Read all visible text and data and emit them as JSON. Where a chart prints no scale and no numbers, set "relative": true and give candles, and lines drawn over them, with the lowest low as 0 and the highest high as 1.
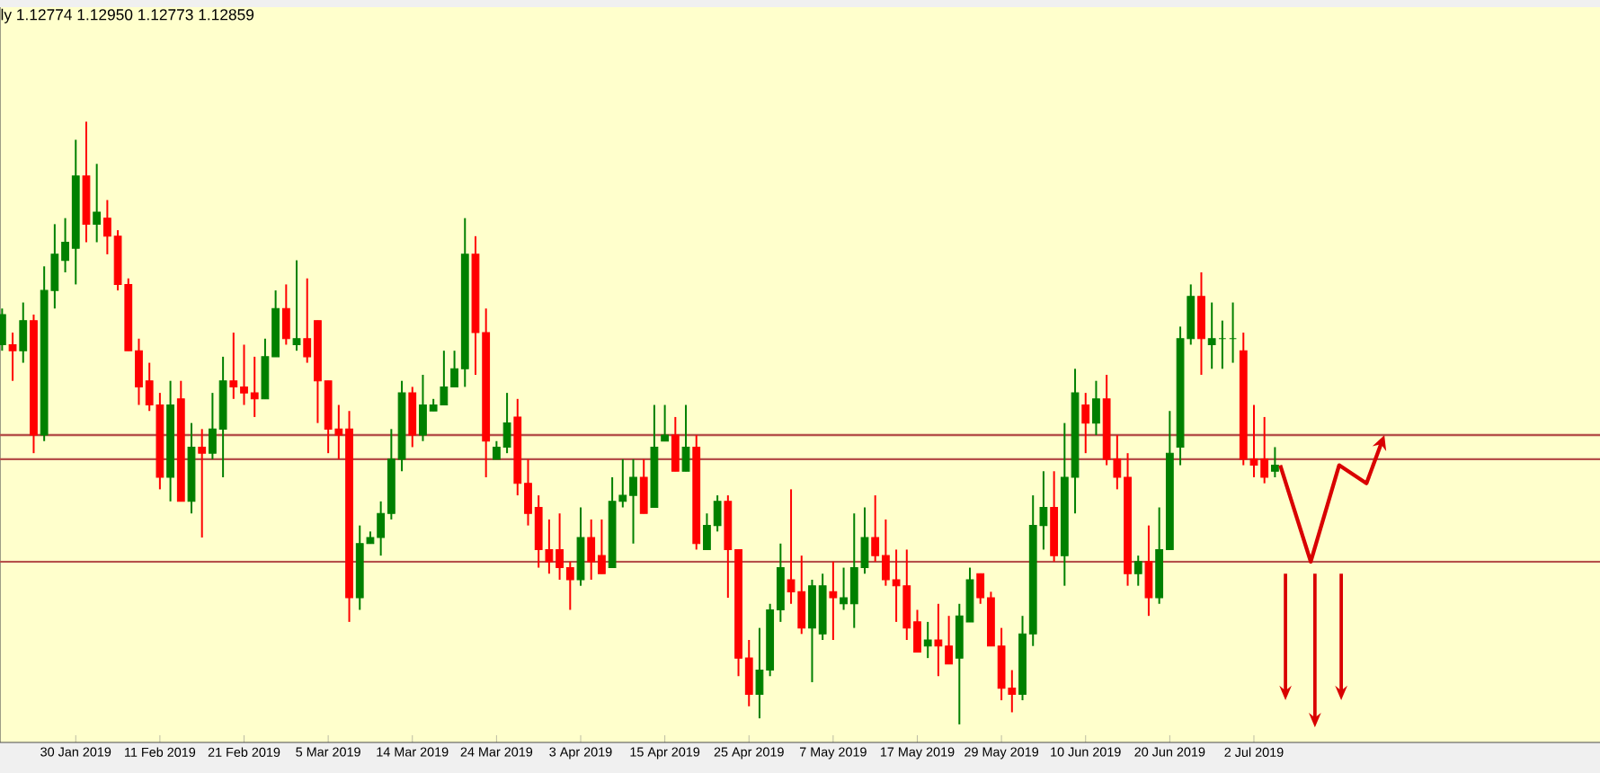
{
  "chart_data": {
    "type": "candlestick",
    "title": "ly 1.12774 1.12950 1.12773 1.12859",
    "relative": true,
    "categories": [
      null,
      null,
      null,
      null,
      null,
      null,
      null,
      "30 Jan 2019",
      null,
      null,
      null,
      null,
      null,
      null,
      null,
      "11 Feb 2019",
      null,
      null,
      null,
      null,
      null,
      null,
      null,
      "21 Feb 2019",
      null,
      null,
      null,
      null,
      null,
      null,
      null,
      "5 Mar 2019",
      null,
      null,
      null,
      null,
      null,
      null,
      null,
      "14 Mar 2019",
      null,
      null,
      null,
      null,
      null,
      null,
      null,
      "24 Mar 2019",
      null,
      null,
      null,
      null,
      null,
      null,
      null,
      "3 Apr 2019",
      null,
      null,
      null,
      null,
      null,
      null,
      null,
      "15 Apr 2019",
      null,
      null,
      null,
      null,
      null,
      null,
      null,
      "25 Apr 2019",
      null,
      null,
      null,
      null,
      null,
      null,
      null,
      "7 May 2019",
      null,
      null,
      null,
      null,
      null,
      null,
      null,
      "17 May 2019",
      null,
      null,
      null,
      null,
      null,
      null,
      null,
      "29 May 2019",
      null,
      null,
      null,
      null,
      null,
      null,
      null,
      "10 Jun 2019",
      null,
      null,
      null,
      null,
      null,
      null,
      null,
      "20 Jun 2019",
      null,
      null,
      null,
      null,
      null,
      null,
      null,
      "2 Jul 2019",
      null,
      null
    ],
    "ohlc": [
      [
        0.63,
        0.69,
        0.62,
        0.68
      ],
      [
        0.63,
        0.65,
        0.57,
        0.62
      ],
      [
        0.62,
        0.7,
        0.6,
        0.67
      ],
      [
        0.67,
        0.68,
        0.45,
        0.48
      ],
      [
        0.48,
        0.76,
        0.47,
        0.72
      ],
      [
        0.72,
        0.83,
        0.69,
        0.78
      ],
      [
        0.77,
        0.84,
        0.75,
        0.8
      ],
      [
        0.79,
        0.97,
        0.73,
        0.91
      ],
      [
        0.91,
        1.0,
        0.8,
        0.83
      ],
      [
        0.83,
        0.93,
        0.8,
        0.85
      ],
      [
        0.84,
        0.87,
        0.78,
        0.81
      ],
      [
        0.81,
        0.82,
        0.72,
        0.73
      ],
      [
        0.73,
        0.74,
        0.62,
        0.62
      ],
      [
        0.62,
        0.64,
        0.53,
        0.56
      ],
      [
        0.57,
        0.6,
        0.52,
        0.53
      ],
      [
        0.53,
        0.55,
        0.39,
        0.41
      ],
      [
        0.41,
        0.57,
        0.37,
        0.53
      ],
      [
        0.54,
        0.57,
        0.37,
        0.37
      ],
      [
        0.37,
        0.5,
        0.35,
        0.46
      ],
      [
        0.46,
        0.49,
        0.31,
        0.45
      ],
      [
        0.45,
        0.55,
        0.44,
        0.49
      ],
      [
        0.49,
        0.61,
        0.41,
        0.57
      ],
      [
        0.57,
        0.65,
        0.54,
        0.56
      ],
      [
        0.56,
        0.63,
        0.53,
        0.55
      ],
      [
        0.55,
        0.61,
        0.51,
        0.54
      ],
      [
        0.54,
        0.64,
        0.54,
        0.61
      ],
      [
        0.61,
        0.72,
        0.61,
        0.69
      ],
      [
        0.69,
        0.73,
        0.63,
        0.64
      ],
      [
        0.63,
        0.77,
        0.62,
        0.64
      ],
      [
        0.64,
        0.74,
        0.6,
        0.61
      ],
      [
        0.67,
        0.67,
        0.5,
        0.57
      ],
      [
        0.57,
        0.57,
        0.45,
        0.49
      ],
      [
        0.49,
        0.53,
        0.44,
        0.48
      ],
      [
        0.49,
        0.52,
        0.17,
        0.21
      ],
      [
        0.21,
        0.33,
        0.19,
        0.3
      ],
      [
        0.3,
        0.32,
        0.3,
        0.31
      ],
      [
        0.31,
        0.37,
        0.28,
        0.35
      ],
      [
        0.35,
        0.49,
        0.34,
        0.44
      ],
      [
        0.44,
        0.57,
        0.42,
        0.55
      ],
      [
        0.55,
        0.56,
        0.46,
        0.48
      ],
      [
        0.48,
        0.58,
        0.47,
        0.53
      ],
      [
        0.52,
        0.54,
        0.52,
        0.53
      ],
      [
        0.53,
        0.62,
        0.53,
        0.56
      ],
      [
        0.56,
        0.62,
        0.56,
        0.59
      ],
      [
        0.59,
        0.84,
        0.56,
        0.78
      ],
      [
        0.78,
        0.81,
        0.58,
        0.65
      ],
      [
        0.65,
        0.69,
        0.41,
        0.47
      ],
      [
        0.44,
        0.47,
        0.44,
        0.46
      ],
      [
        0.46,
        0.55,
        0.45,
        0.5
      ],
      [
        0.51,
        0.54,
        0.38,
        0.4
      ],
      [
        0.4,
        0.44,
        0.33,
        0.35
      ],
      [
        0.36,
        0.38,
        0.26,
        0.29
      ],
      [
        0.29,
        0.34,
        0.25,
        0.27
      ],
      [
        0.29,
        0.35,
        0.24,
        0.26
      ],
      [
        0.26,
        0.27,
        0.19,
        0.24
      ],
      [
        0.24,
        0.36,
        0.23,
        0.31
      ],
      [
        0.31,
        0.34,
        0.24,
        0.27
      ],
      [
        0.28,
        0.34,
        0.25,
        0.25
      ],
      [
        0.26,
        0.41,
        0.26,
        0.37
      ],
      [
        0.37,
        0.44,
        0.36,
        0.38
      ],
      [
        0.38,
        0.44,
        0.3,
        0.41
      ],
      [
        0.41,
        0.44,
        0.35,
        0.35
      ],
      [
        0.36,
        0.53,
        0.36,
        0.46
      ],
      [
        0.47,
        0.53,
        0.47,
        0.48
      ],
      [
        0.48,
        0.51,
        0.42,
        0.42
      ],
      [
        0.42,
        0.53,
        0.42,
        0.46
      ],
      [
        0.46,
        0.48,
        0.29,
        0.3
      ],
      [
        0.29,
        0.35,
        0.29,
        0.33
      ],
      [
        0.33,
        0.38,
        0.32,
        0.37
      ],
      [
        0.37,
        0.38,
        0.21,
        0.29
      ],
      [
        0.29,
        0.29,
        0.08,
        0.11
      ],
      [
        0.11,
        0.14,
        0.03,
        0.05
      ],
      [
        0.05,
        0.16,
        0.01,
        0.09
      ],
      [
        0.09,
        0.2,
        0.08,
        0.19
      ],
      [
        0.19,
        0.3,
        0.17,
        0.26
      ],
      [
        0.24,
        0.39,
        0.2,
        0.22
      ],
      [
        0.22,
        0.28,
        0.15,
        0.16
      ],
      [
        0.16,
        0.24,
        0.07,
        0.23
      ],
      [
        0.15,
        0.25,
        0.14,
        0.23
      ],
      [
        0.22,
        0.27,
        0.14,
        0.21
      ],
      [
        0.2,
        0.26,
        0.19,
        0.21
      ],
      [
        0.2,
        0.35,
        0.16,
        0.26
      ],
      [
        0.26,
        0.36,
        0.25,
        0.31
      ],
      [
        0.31,
        0.38,
        0.27,
        0.28
      ],
      [
        0.28,
        0.34,
        0.23,
        0.24
      ],
      [
        0.24,
        0.29,
        0.17,
        0.23
      ],
      [
        0.23,
        0.29,
        0.14,
        0.16
      ],
      [
        0.17,
        0.19,
        0.12,
        0.12
      ],
      [
        0.13,
        0.17,
        0.11,
        0.14
      ],
      [
        0.14,
        0.2,
        0.08,
        0.13
      ],
      [
        0.13,
        0.18,
        0.1,
        0.1
      ],
      [
        0.11,
        0.2,
        0,
        0.18
      ],
      [
        0.17,
        0.26,
        0.17,
        0.24
      ],
      [
        0.25,
        0.25,
        0.2,
        0.21
      ],
      [
        0.21,
        0.22,
        0.13,
        0.13
      ],
      [
        0.13,
        0.16,
        0.04,
        0.06
      ],
      [
        0.06,
        0.09,
        0.02,
        0.05
      ],
      [
        0.05,
        0.18,
        0.04,
        0.15
      ],
      [
        0.15,
        0.38,
        0.13,
        0.33
      ],
      [
        0.33,
        0.42,
        0.29,
        0.36
      ],
      [
        0.36,
        0.42,
        0.27,
        0.28
      ],
      [
        0.28,
        0.5,
        0.23,
        0.41
      ],
      [
        0.41,
        0.59,
        0.35,
        0.55
      ],
      [
        0.53,
        0.55,
        0.45,
        0.5
      ],
      [
        0.5,
        0.57,
        0.48,
        0.54
      ],
      [
        0.54,
        0.58,
        0.43,
        0.44
      ],
      [
        0.44,
        0.48,
        0.39,
        0.41
      ],
      [
        0.41,
        0.45,
        0.23,
        0.25
      ],
      [
        0.25,
        0.28,
        0.23,
        0.27
      ],
      [
        0.27,
        0.33,
        0.18,
        0.21
      ],
      [
        0.21,
        0.36,
        0.2,
        0.29
      ],
      [
        0.29,
        0.52,
        0.29,
        0.45
      ],
      [
        0.46,
        0.66,
        0.43,
        0.64
      ],
      [
        0.64,
        0.73,
        0.63,
        0.71
      ],
      [
        0.71,
        0.75,
        0.58,
        0.64
      ],
      [
        0.63,
        0.7,
        0.59,
        0.64
      ],
      [
        0.64,
        0.67,
        0.59,
        0.64
      ],
      [
        0.64,
        0.7,
        0.6,
        0.64
      ],
      [
        0.62,
        0.65,
        0.43,
        0.44
      ],
      [
        0.44,
        0.53,
        0.41,
        0.43
      ],
      [
        0.44,
        0.51,
        0.4,
        0.41
      ],
      [
        0.42,
        0.46,
        0.41,
        0.43
      ]
    ],
    "colors": [
      "#008000",
      "#ff0000",
      "#008000",
      "#ff0000",
      "#008000",
      "#008000",
      "#008000",
      "#008000",
      "#ff0000",
      "#008000",
      "#ff0000",
      "#ff0000",
      "#ff0000",
      "#ff0000",
      "#ff0000",
      "#ff0000",
      "#008000",
      "#ff0000",
      "#008000",
      "#ff0000",
      "#008000",
      "#008000",
      "#ff0000",
      "#ff0000",
      "#ff0000",
      "#008000",
      "#008000",
      "#ff0000",
      "#008000",
      "#ff0000",
      "#ff0000",
      "#ff0000",
      "#ff0000",
      "#ff0000",
      "#008000",
      "#008000",
      "#008000",
      "#008000",
      "#008000",
      "#ff0000",
      "#008000",
      "#008000",
      "#008000",
      "#008000",
      "#008000",
      "#ff0000",
      "#ff0000",
      "#008000",
      "#008000",
      "#ff0000",
      "#ff0000",
      "#ff0000",
      "#ff0000",
      "#ff0000",
      "#ff0000",
      "#008000",
      "#ff0000",
      "#ff0000",
      "#008000",
      "#008000",
      "#008000",
      "#ff0000",
      "#008000",
      "#008000",
      "#ff0000",
      "#008000",
      "#ff0000",
      "#008000",
      "#008000",
      "#ff0000",
      "#ff0000",
      "#ff0000",
      "#008000",
      "#008000",
      "#008000",
      "#ff0000",
      "#ff0000",
      "#008000",
      "#008000",
      "#ff0000",
      "#008000",
      "#008000",
      "#008000",
      "#ff0000",
      "#ff0000",
      "#ff0000",
      "#ff0000",
      "#ff0000",
      "#008000",
      "#ff0000",
      "#ff0000",
      "#008000",
      "#008000",
      "#ff0000",
      "#ff0000",
      "#ff0000",
      "#ff0000",
      "#008000",
      "#008000",
      "#008000",
      "#ff0000",
      "#008000",
      "#008000",
      "#ff0000",
      "#008000",
      "#ff0000",
      "#ff0000",
      "#ff0000",
      "#008000",
      "#ff0000",
      "#008000",
      "#008000",
      "#008000",
      "#008000",
      "#ff0000",
      "#008000",
      "#008000",
      "#008000",
      "#ff0000",
      "#ff0000",
      "#ff0000",
      "#008000"
    ],
    "ref_lines": [
      {
        "axis": "y",
        "value": 0.48,
        "color": "#b5504a"
      },
      {
        "axis": "y",
        "value": 0.44,
        "color": "#b5504a"
      },
      {
        "axis": "y",
        "value": 0.27,
        "color": "#b5504a"
      }
    ]
  }
}
